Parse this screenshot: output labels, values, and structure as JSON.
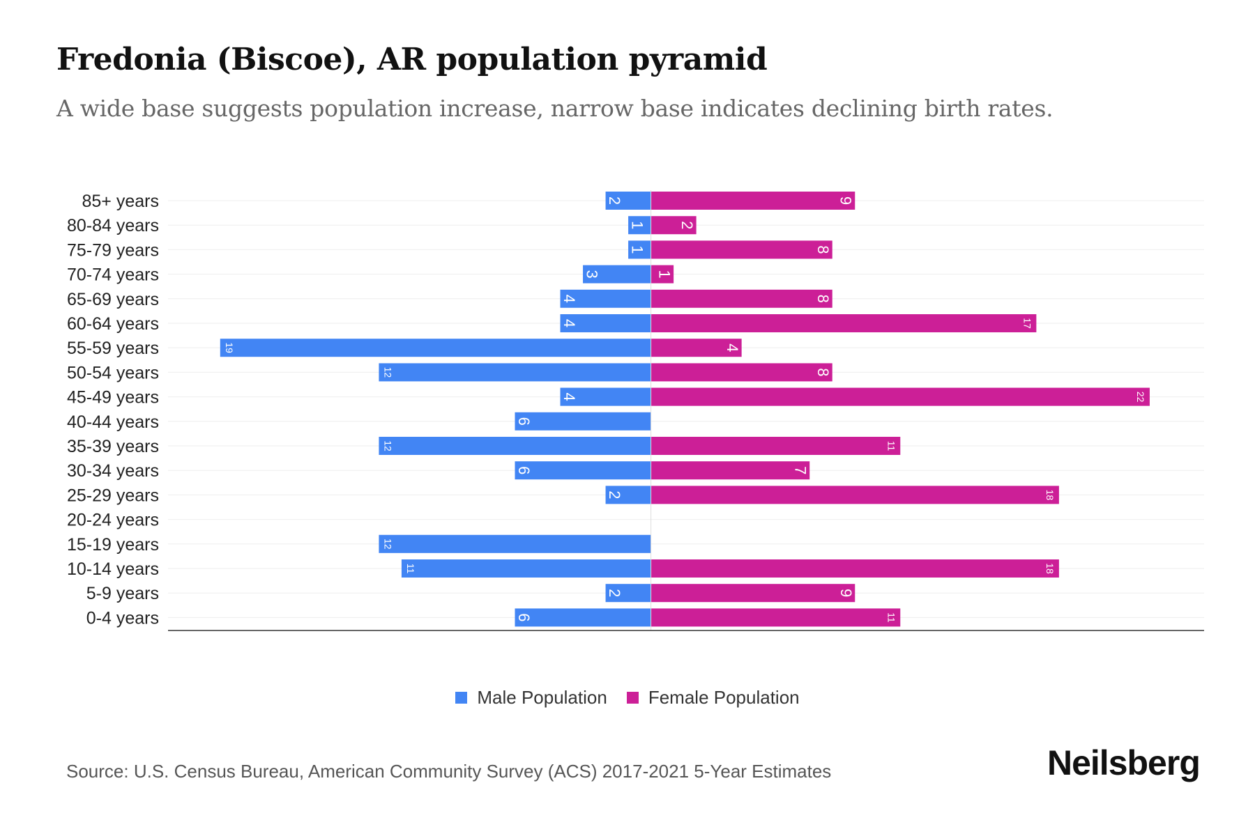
{
  "title": "Fredonia (Biscoe), AR population pyramid",
  "subtitle": "A wide base suggests population increase, narrow base indicates declining birth rates.",
  "source": "Source: U.S. Census Bureau, American Community Survey (ACS) 2017-2021 5-Year Estimates",
  "logo": "Neilsberg",
  "colors": {
    "male": "#4285f4",
    "female": "#cc1f97"
  },
  "chart_data": {
    "type": "bar",
    "orientation": "horizontal-pyramid",
    "categories": [
      "85+ years",
      "80-84 years",
      "75-79 years",
      "70-74 years",
      "65-69 years",
      "60-64 years",
      "55-59 years",
      "50-54 years",
      "45-49 years",
      "40-44 years",
      "35-39 years",
      "30-34 years",
      "25-29 years",
      "20-24 years",
      "15-19 years",
      "10-14 years",
      "5-9 years",
      "0-4 years"
    ],
    "series": [
      {
        "name": "Male Population",
        "values": [
          2,
          1,
          1,
          3,
          4,
          4,
          19,
          12,
          4,
          6,
          12,
          6,
          2,
          0,
          12,
          11,
          2,
          6
        ]
      },
      {
        "name": "Female Population",
        "values": [
          9,
          2,
          8,
          1,
          8,
          17,
          4,
          8,
          22,
          0,
          11,
          7,
          18,
          0,
          0,
          18,
          9,
          11
        ]
      }
    ],
    "xlim": [
      -21.3,
      24.4
    ],
    "legend": "bottom-center",
    "grid": true
  }
}
